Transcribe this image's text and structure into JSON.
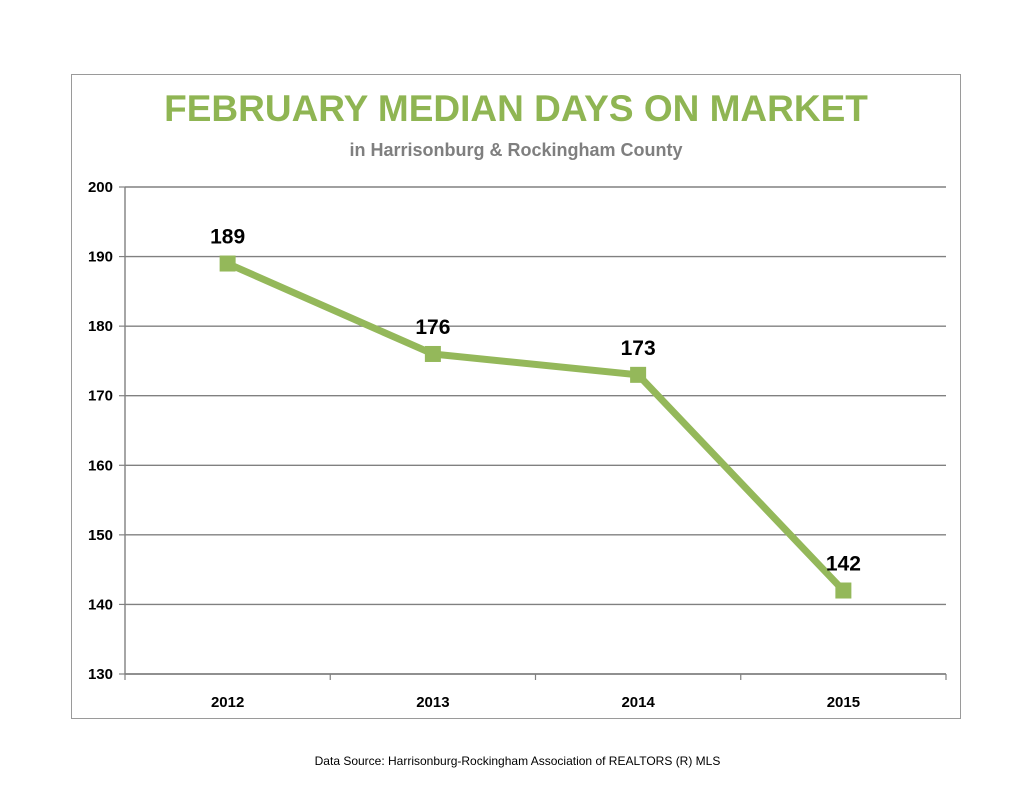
{
  "chart_data": {
    "type": "line",
    "title": "FEBRUARY MEDIAN DAYS ON MARKET",
    "subtitle": "in Harrisonburg  & Rockingham County",
    "categories": [
      "2012",
      "2013",
      "2014",
      "2015"
    ],
    "series": [
      {
        "values": [
          189,
          176,
          173,
          142
        ]
      }
    ],
    "data_labels": [
      "189",
      "176",
      "173",
      "142"
    ],
    "ylim": [
      130,
      200
    ],
    "yticks": [
      "130",
      "140",
      "150",
      "160",
      "170",
      "180",
      "190",
      "200"
    ],
    "grid": true,
    "legend": "none",
    "line_color": "#94b85a",
    "title_color": "#8fb553",
    "subtitle_color": "#7f7f7f"
  },
  "footer": {
    "source": "Data Source: Harrisonburg-Rockingham Association of REALTORS (R) MLS"
  }
}
